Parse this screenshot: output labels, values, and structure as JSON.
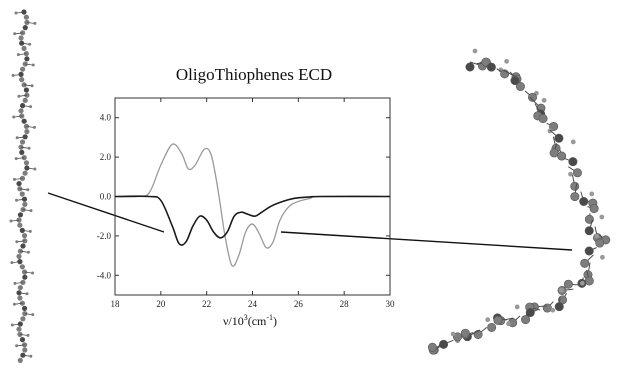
{
  "chart_data": {
    "type": "line",
    "title": "OligoThiophenes ECD",
    "xlabel": "ν/10",
    "xlabel_sup": "3",
    "xlabel_unit_open": "(cm",
    "xlabel_unit_sup": "-1",
    "xlabel_unit_close": ")",
    "ylabel": "",
    "xlim": [
      18,
      30
    ],
    "ylim": [
      -5,
      5
    ],
    "x_ticks": [
      18,
      20,
      22,
      24,
      26,
      28,
      30
    ],
    "x_tick_labels": [
      "18",
      "20",
      "22",
      "24",
      "26",
      "28",
      "30"
    ],
    "y_ticks": [
      -4,
      -2,
      0,
      2,
      4
    ],
    "y_tick_labels": [
      "-4.0",
      "-2.0",
      "0.0",
      "2.0",
      "4.0"
    ],
    "grid": false,
    "series": [
      {
        "color": "#9a9a9a",
        "points": [
          [
            18,
            0
          ],
          [
            19.0,
            0
          ],
          [
            19.5,
            0.2
          ],
          [
            20.0,
            1.6
          ],
          [
            20.5,
            2.65
          ],
          [
            20.9,
            2.2
          ],
          [
            21.2,
            1.4
          ],
          [
            21.5,
            1.6
          ],
          [
            21.9,
            2.4
          ],
          [
            22.2,
            2.1
          ],
          [
            22.5,
            0.3
          ],
          [
            22.8,
            -2.0
          ],
          [
            23.1,
            -3.5
          ],
          [
            23.4,
            -3.0
          ],
          [
            23.7,
            -1.8
          ],
          [
            24.0,
            -1.4
          ],
          [
            24.3,
            -1.9
          ],
          [
            24.6,
            -2.6
          ],
          [
            24.9,
            -2.3
          ],
          [
            25.2,
            -1.2
          ],
          [
            25.6,
            -0.5
          ],
          [
            26.0,
            -0.25
          ],
          [
            26.5,
            -0.1
          ],
          [
            27.0,
            0
          ],
          [
            30,
            0
          ]
        ]
      },
      {
        "color": "#1a1a1a",
        "points": [
          [
            18,
            0
          ],
          [
            19.5,
            0
          ],
          [
            20.0,
            -0.2
          ],
          [
            20.5,
            -1.5
          ],
          [
            20.8,
            -2.4
          ],
          [
            21.1,
            -2.3
          ],
          [
            21.4,
            -1.5
          ],
          [
            21.7,
            -1.0
          ],
          [
            22.0,
            -1.2
          ],
          [
            22.3,
            -1.8
          ],
          [
            22.6,
            -2.1
          ],
          [
            22.9,
            -1.8
          ],
          [
            23.2,
            -1.0
          ],
          [
            23.5,
            -0.8
          ],
          [
            23.8,
            -0.9
          ],
          [
            24.1,
            -1.0
          ],
          [
            24.4,
            -0.8
          ],
          [
            24.8,
            -0.5
          ],
          [
            25.2,
            -0.3
          ],
          [
            25.8,
            -0.1
          ],
          [
            26.5,
            -0.02
          ],
          [
            27.0,
            0
          ],
          [
            30,
            0
          ]
        ]
      }
    ]
  },
  "decorations": {
    "molecule_color": "#7d7d7d",
    "molecule_dark": "#4a4a4a"
  }
}
